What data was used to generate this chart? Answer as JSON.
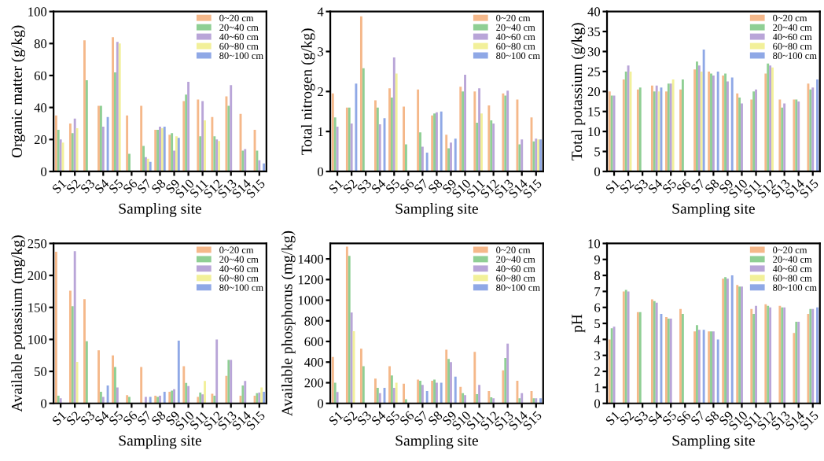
{
  "chart_data": [
    {
      "type": "bar",
      "xlabel": "Sampling site",
      "ylabel": "Organic matter (g/kg)",
      "categories": [
        "S1",
        "S2",
        "S3",
        "S4",
        "S5",
        "S6",
        "S7",
        "S8",
        "S9",
        "S10",
        "S11",
        "S12",
        "S13",
        "S14",
        "S15"
      ],
      "ylim": [
        0,
        100
      ],
      "yticks": [
        0,
        20,
        40,
        60,
        80,
        100
      ],
      "legend": "top right",
      "grid": false,
      "series": [
        {
          "name": "0~20 cm",
          "color": "#f5b88a",
          "values": [
            35,
            30,
            82,
            41,
            84,
            35,
            41,
            26,
            23,
            44,
            45,
            34,
            47,
            36,
            26
          ]
        },
        {
          "name": "20~40 cm",
          "color": "#8fcf94",
          "values": [
            26,
            24,
            57,
            41,
            62,
            11,
            16,
            26,
            24,
            48,
            22,
            22,
            41,
            13,
            13
          ]
        },
        {
          "name": "40~60 cm",
          "color": "#b9a5d8",
          "values": [
            20,
            33,
            null,
            28,
            81,
            null,
            9,
            28,
            13,
            56,
            44,
            20,
            54,
            14,
            7
          ]
        },
        {
          "name": "60~80 cm",
          "color": "#f2f09a",
          "values": [
            18,
            27,
            null,
            null,
            80,
            null,
            8,
            27,
            22,
            null,
            32,
            19,
            null,
            null,
            null
          ]
        },
        {
          "name": "80~100 cm",
          "color": "#8fa8e6",
          "values": [
            null,
            null,
            null,
            34,
            null,
            null,
            6,
            28,
            21,
            null,
            null,
            null,
            null,
            null,
            5
          ]
        }
      ]
    },
    {
      "type": "bar",
      "xlabel": "Sampling site",
      "ylabel": "Total nitrogen (g/kg)",
      "categories": [
        "S1",
        "S2",
        "S3",
        "S4",
        "S5",
        "S6",
        "S7",
        "S8",
        "S9",
        "S10",
        "S11",
        "S12",
        "S13",
        "S14",
        "S15"
      ],
      "ylim": [
        0,
        4
      ],
      "yticks": [
        0,
        1,
        2,
        3,
        4
      ],
      "legend": "top right",
      "grid": false,
      "series": [
        {
          "name": "0~20 cm",
          "color": "#f5b88a",
          "values": [
            1.95,
            1.6,
            3.88,
            1.78,
            2.08,
            1.62,
            2.05,
            1.4,
            0.92,
            2.12,
            2.0,
            1.65,
            1.95,
            1.8,
            1.35
          ]
        },
        {
          "name": "20~40 cm",
          "color": "#8fcf94",
          "values": [
            1.35,
            1.6,
            2.58,
            1.6,
            1.85,
            0.68,
            0.98,
            1.45,
            0.58,
            2.0,
            1.22,
            1.28,
            1.9,
            0.68,
            0.75
          ]
        },
        {
          "name": "40~60 cm",
          "color": "#b9a5d8",
          "values": [
            1.12,
            1.2,
            null,
            1.18,
            2.85,
            null,
            0.62,
            1.48,
            0.72,
            2.42,
            2.08,
            1.2,
            2.02,
            0.8,
            0.82
          ]
        },
        {
          "name": "60~80 cm",
          "color": "#f2f09a",
          "values": [
            null,
            null,
            null,
            null,
            2.45,
            null,
            null,
            null,
            null,
            null,
            1.45,
            null,
            null,
            null,
            0.8
          ]
        },
        {
          "name": "80~100 cm",
          "color": "#8fa8e6",
          "values": [
            null,
            2.2,
            null,
            1.33,
            null,
            null,
            0.47,
            1.5,
            0.82,
            null,
            null,
            null,
            null,
            null,
            0.8
          ]
        }
      ]
    },
    {
      "type": "bar",
      "xlabel": "Sampling site",
      "ylabel": "Total potassium (g/kg)",
      "categories": [
        "S1",
        "S2",
        "S3",
        "S4",
        "S5",
        "S6",
        "S7",
        "S8",
        "S9",
        "S10",
        "S11",
        "S12",
        "S13",
        "S14",
        "S15"
      ],
      "ylim": [
        0,
        40
      ],
      "yticks": [
        0,
        5,
        10,
        15,
        20,
        25,
        30,
        35,
        40
      ],
      "legend": "top right",
      "grid": false,
      "series": [
        {
          "name": "0~20 cm",
          "color": "#f5b88a",
          "values": [
            20,
            23,
            20.5,
            21.5,
            20,
            20.5,
            25.5,
            25,
            24,
            19.5,
            18,
            24.5,
            18,
            18,
            22
          ]
        },
        {
          "name": "20~40 cm",
          "color": "#8fcf94",
          "values": [
            19,
            25,
            21,
            20,
            22,
            23,
            27.5,
            24.5,
            24.5,
            18.5,
            20,
            27,
            16,
            18,
            20.5
          ]
        },
        {
          "name": "40~60 cm",
          "color": "#b9a5d8",
          "values": [
            19,
            26.5,
            null,
            21.5,
            22,
            null,
            26.5,
            24,
            22.5,
            17,
            20.5,
            26.5,
            17,
            17.5,
            21
          ]
        },
        {
          "name": "60~80 cm",
          "color": "#f2f09a",
          "values": [
            null,
            25,
            null,
            20,
            23,
            null,
            25,
            null,
            null,
            null,
            null,
            26,
            null,
            null,
            null
          ]
        },
        {
          "name": "80~100 cm",
          "color": "#8fa8e6",
          "values": [
            null,
            null,
            null,
            21,
            null,
            null,
            30.5,
            25,
            23.5,
            null,
            null,
            null,
            null,
            null,
            23
          ]
        }
      ]
    },
    {
      "type": "bar",
      "xlabel": "Sampling site",
      "ylabel": "Available potassium (mg/kg)",
      "categories": [
        "S1",
        "S2",
        "S3",
        "S4",
        "S5",
        "S6",
        "S7",
        "S8",
        "S9",
        "S10",
        "S11",
        "S12",
        "S13",
        "S14",
        "S15"
      ],
      "ylim": [
        0,
        250
      ],
      "yticks": [
        0,
        50,
        100,
        150,
        200,
        250
      ],
      "legend": "top right",
      "grid": false,
      "series": [
        {
          "name": "0~20 cm",
          "color": "#f5b88a",
          "values": [
            237,
            176,
            163,
            83,
            75,
            13,
            57,
            12,
            18,
            58,
            10,
            15,
            43,
            12,
            12
          ]
        },
        {
          "name": "20~40 cm",
          "color": "#8fcf94",
          "values": [
            12,
            152,
            97,
            18,
            57,
            10,
            null,
            10,
            20,
            32,
            17,
            12,
            68,
            28,
            16
          ]
        },
        {
          "name": "40~60 cm",
          "color": "#b9a5d8",
          "values": [
            8,
            238,
            null,
            10,
            25,
            null,
            10,
            12,
            22,
            27,
            14,
            100,
            68,
            35,
            17
          ]
        },
        {
          "name": "60~80 cm",
          "color": "#f2f09a",
          "values": [
            null,
            65,
            null,
            null,
            null,
            null,
            null,
            null,
            null,
            null,
            35,
            null,
            null,
            null,
            25
          ]
        },
        {
          "name": "80~100 cm",
          "color": "#8fa8e6",
          "values": [
            null,
            null,
            null,
            28,
            null,
            null,
            10,
            18,
            98,
            null,
            null,
            null,
            null,
            null,
            18
          ]
        }
      ]
    },
    {
      "type": "bar",
      "xlabel": "Sampling site",
      "ylabel": "Available phosphorus (mg/kg)",
      "categories": [
        "S1",
        "S2",
        "S3",
        "S4",
        "S5",
        "S6",
        "S7",
        "S8",
        "S9",
        "S10",
        "S11",
        "S12",
        "S13",
        "S14",
        "S15"
      ],
      "ylim": [
        0,
        1550
      ],
      "yticks": [
        0,
        200,
        400,
        600,
        800,
        1000,
        1200,
        1400
      ],
      "legend": "top right",
      "grid": false,
      "series": [
        {
          "name": "0~20 cm",
          "color": "#f5b88a",
          "values": [
            450,
            1520,
            530,
            240,
            360,
            190,
            230,
            220,
            520,
            160,
            500,
            120,
            320,
            220,
            120
          ]
        },
        {
          "name": "20~40 cm",
          "color": "#8fcf94",
          "values": [
            200,
            1430,
            360,
            150,
            270,
            40,
            220,
            230,
            430,
            100,
            90,
            60,
            440,
            50,
            50
          ]
        },
        {
          "name": "40~60 cm",
          "color": "#b9a5d8",
          "values": [
            110,
            880,
            null,
            100,
            150,
            null,
            180,
            200,
            400,
            80,
            180,
            50,
            580,
            100,
            50
          ]
        },
        {
          "name": "60~80 cm",
          "color": "#f2f09a",
          "values": [
            null,
            700,
            null,
            null,
            200,
            null,
            null,
            null,
            null,
            null,
            null,
            null,
            null,
            null,
            null
          ]
        },
        {
          "name": "80~100 cm",
          "color": "#8fa8e6",
          "values": [
            null,
            null,
            null,
            150,
            null,
            null,
            120,
            200,
            260,
            null,
            null,
            null,
            null,
            null,
            50
          ]
        }
      ]
    },
    {
      "type": "bar",
      "xlabel": "Sampling site",
      "ylabel": "pH",
      "categories": [
        "S1",
        "S2",
        "S3",
        "S4",
        "S5",
        "S6",
        "S7",
        "S8",
        "S9",
        "S10",
        "S11",
        "S12",
        "S13",
        "S14",
        "S15"
      ],
      "ylim": [
        0,
        10
      ],
      "yticks": [
        0,
        1,
        2,
        3,
        4,
        5,
        6,
        7,
        8,
        9,
        10
      ],
      "legend": "top right",
      "grid": false,
      "series": [
        {
          "name": "0~20 cm",
          "color": "#f5b88a",
          "values": [
            4.0,
            7.0,
            5.7,
            6.5,
            5.4,
            5.9,
            4.5,
            4.5,
            7.8,
            7.4,
            5.9,
            6.2,
            6.1,
            4.4,
            5.6
          ]
        },
        {
          "name": "20~40 cm",
          "color": "#8fcf94",
          "values": [
            4.7,
            7.1,
            5.7,
            6.4,
            5.3,
            5.6,
            4.9,
            4.5,
            7.9,
            7.3,
            5.6,
            6.1,
            6.0,
            5.1,
            5.9
          ]
        },
        {
          "name": "40~60 cm",
          "color": "#b9a5d8",
          "values": [
            4.8,
            7.0,
            null,
            6.3,
            5.3,
            null,
            4.6,
            4.5,
            7.8,
            7.3,
            6.1,
            6.0,
            6.0,
            5.1,
            5.9
          ]
        },
        {
          "name": "60~80 cm",
          "color": "#f2f09a",
          "values": [
            null,
            null,
            null,
            null,
            null,
            null,
            null,
            null,
            null,
            null,
            null,
            null,
            null,
            null,
            null
          ]
        },
        {
          "name": "80~100 cm",
          "color": "#8fa8e6",
          "values": [
            null,
            null,
            null,
            5.6,
            null,
            null,
            4.6,
            4.0,
            8.0,
            null,
            null,
            null,
            null,
            null,
            6.0
          ]
        }
      ]
    }
  ]
}
